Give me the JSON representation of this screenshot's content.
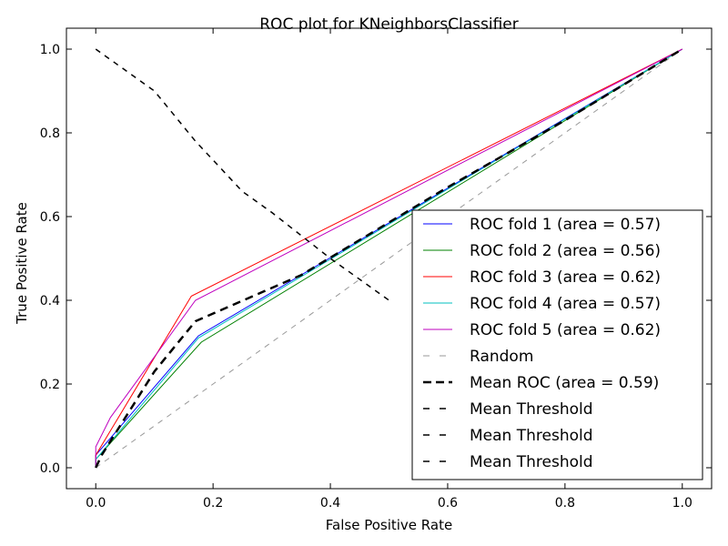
{
  "chart_data": {
    "type": "line",
    "title": "ROC plot for KNeighborsClassifier",
    "xlabel": "False Positive Rate",
    "ylabel": "True Positive Rate",
    "xlim": [
      -0.05,
      1.05
    ],
    "ylim": [
      -0.05,
      1.05
    ],
    "x_ticks": [
      0.0,
      0.2,
      0.4,
      0.6,
      0.8,
      1.0
    ],
    "y_ticks": [
      0.0,
      0.2,
      0.4,
      0.6,
      0.8,
      1.0
    ],
    "x_tick_labels": [
      "0.0",
      "0.2",
      "0.4",
      "0.6",
      "0.8",
      "1.0"
    ],
    "y_tick_labels": [
      "0.0",
      "0.2",
      "0.4",
      "0.6",
      "0.8",
      "1.0"
    ],
    "grid": false,
    "legend_position": "lower right",
    "series": [
      {
        "name": "ROC fold 1 (area = 0.57)",
        "color": "#0000ff",
        "dash": "solid",
        "width": 1,
        "x": [
          0.0,
          0.0,
          0.175,
          1.0
        ],
        "y": [
          0.0,
          0.03,
          0.315,
          1.0
        ]
      },
      {
        "name": "ROC fold 2 (area = 0.56)",
        "color": "#008000",
        "dash": "solid",
        "width": 1,
        "x": [
          0.0,
          0.0,
          0.18,
          1.0
        ],
        "y": [
          0.0,
          0.02,
          0.3,
          1.0
        ]
      },
      {
        "name": "ROC fold 3 (area = 0.62)",
        "color": "#ff0000",
        "dash": "solid",
        "width": 1,
        "x": [
          0.0,
          0.0,
          0.163,
          1.0
        ],
        "y": [
          0.0,
          0.03,
          0.41,
          1.0
        ]
      },
      {
        "name": "ROC fold 4 (area = 0.57)",
        "color": "#00bfbf",
        "dash": "solid",
        "width": 1,
        "x": [
          0.0,
          0.0,
          0.175,
          1.0
        ],
        "y": [
          0.0,
          0.02,
          0.31,
          1.0
        ]
      },
      {
        "name": "ROC fold 5 (area = 0.62)",
        "color": "#bf00bf",
        "dash": "solid",
        "width": 1,
        "x": [
          0.0,
          0.0,
          0.025,
          0.17,
          1.0
        ],
        "y": [
          0.0,
          0.05,
          0.12,
          0.4,
          1.0
        ]
      },
      {
        "name": "Random",
        "color": "#999999",
        "dash": "dashed",
        "width": 1,
        "x": [
          0.0,
          1.0
        ],
        "y": [
          0.0,
          1.0
        ]
      },
      {
        "name": "Mean ROC (area = 0.59)",
        "color": "#000000",
        "dash": "dashed",
        "width": 2.5,
        "x": [
          0.0,
          0.01,
          0.1,
          0.17,
          0.35,
          0.6,
          0.8,
          1.0
        ],
        "y": [
          0.0,
          0.03,
          0.23,
          0.35,
          0.46,
          0.67,
          0.83,
          1.0
        ]
      },
      {
        "name": "Mean Threshold",
        "color": "#000000",
        "dash": "dashed",
        "width": 1.5,
        "x": [
          0.0,
          0.1,
          0.17,
          0.25,
          0.3,
          0.4,
          0.5
        ],
        "y": [
          1.0,
          0.9,
          0.78,
          0.66,
          0.61,
          0.5,
          0.4
        ]
      },
      {
        "name": "Mean Threshold",
        "color": "#000000",
        "dash": "dashed",
        "width": 1.5,
        "x": [],
        "y": []
      },
      {
        "name": "Mean Threshold",
        "color": "#000000",
        "dash": "dashed",
        "width": 1.5,
        "x": [],
        "y": []
      }
    ]
  }
}
